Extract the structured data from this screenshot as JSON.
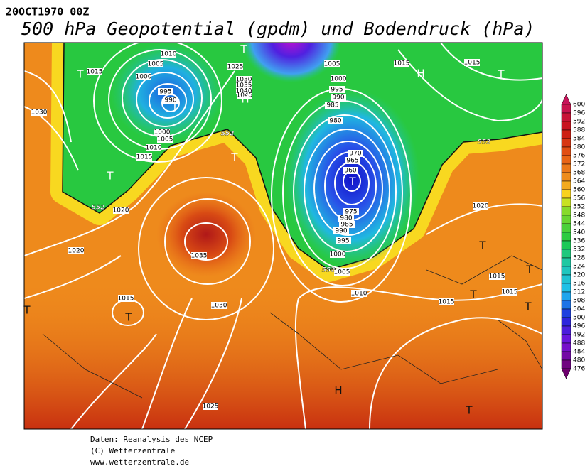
{
  "header": {
    "date": "20OCT1970 00Z",
    "title": "500 hPa Geopotential (gpdm) und Bodendruck (hPa)"
  },
  "legend_levels": [
    600,
    596,
    592,
    588,
    584,
    580,
    576,
    572,
    568,
    564,
    560,
    556,
    552,
    548,
    544,
    540,
    536,
    532,
    528,
    524,
    520,
    516,
    512,
    508,
    504,
    500,
    496,
    492,
    488,
    484,
    480,
    476
  ],
  "map": {
    "pressure_labels": [
      1010,
      1005,
      1000,
      995,
      990,
      1000,
      1005,
      1010,
      1015,
      1015,
      1030,
      1025,
      1030,
      1035,
      1040,
      1045,
      1005,
      1000,
      995,
      990,
      985,
      980,
      970,
      965,
      960,
      975,
      980,
      985,
      990,
      995,
      1000,
      1005,
      1010,
      1015,
      1015,
      1020,
      1020,
      1020,
      1035,
      1030,
      1015,
      1015,
      1015,
      1015,
      1025
    ],
    "height_labels": [
      552,
      552,
      552,
      552
    ],
    "centers": [
      "T",
      "T",
      "H",
      "T",
      "T",
      "H",
      "T",
      "T",
      "T",
      "T",
      "T",
      "T",
      "T",
      "T",
      "H",
      "T",
      "T"
    ]
  },
  "footer": [
    "Daten: Reanalysis des NCEP",
    "(C) Wetterzentrale",
    "www.wetterzentrale.de"
  ]
}
